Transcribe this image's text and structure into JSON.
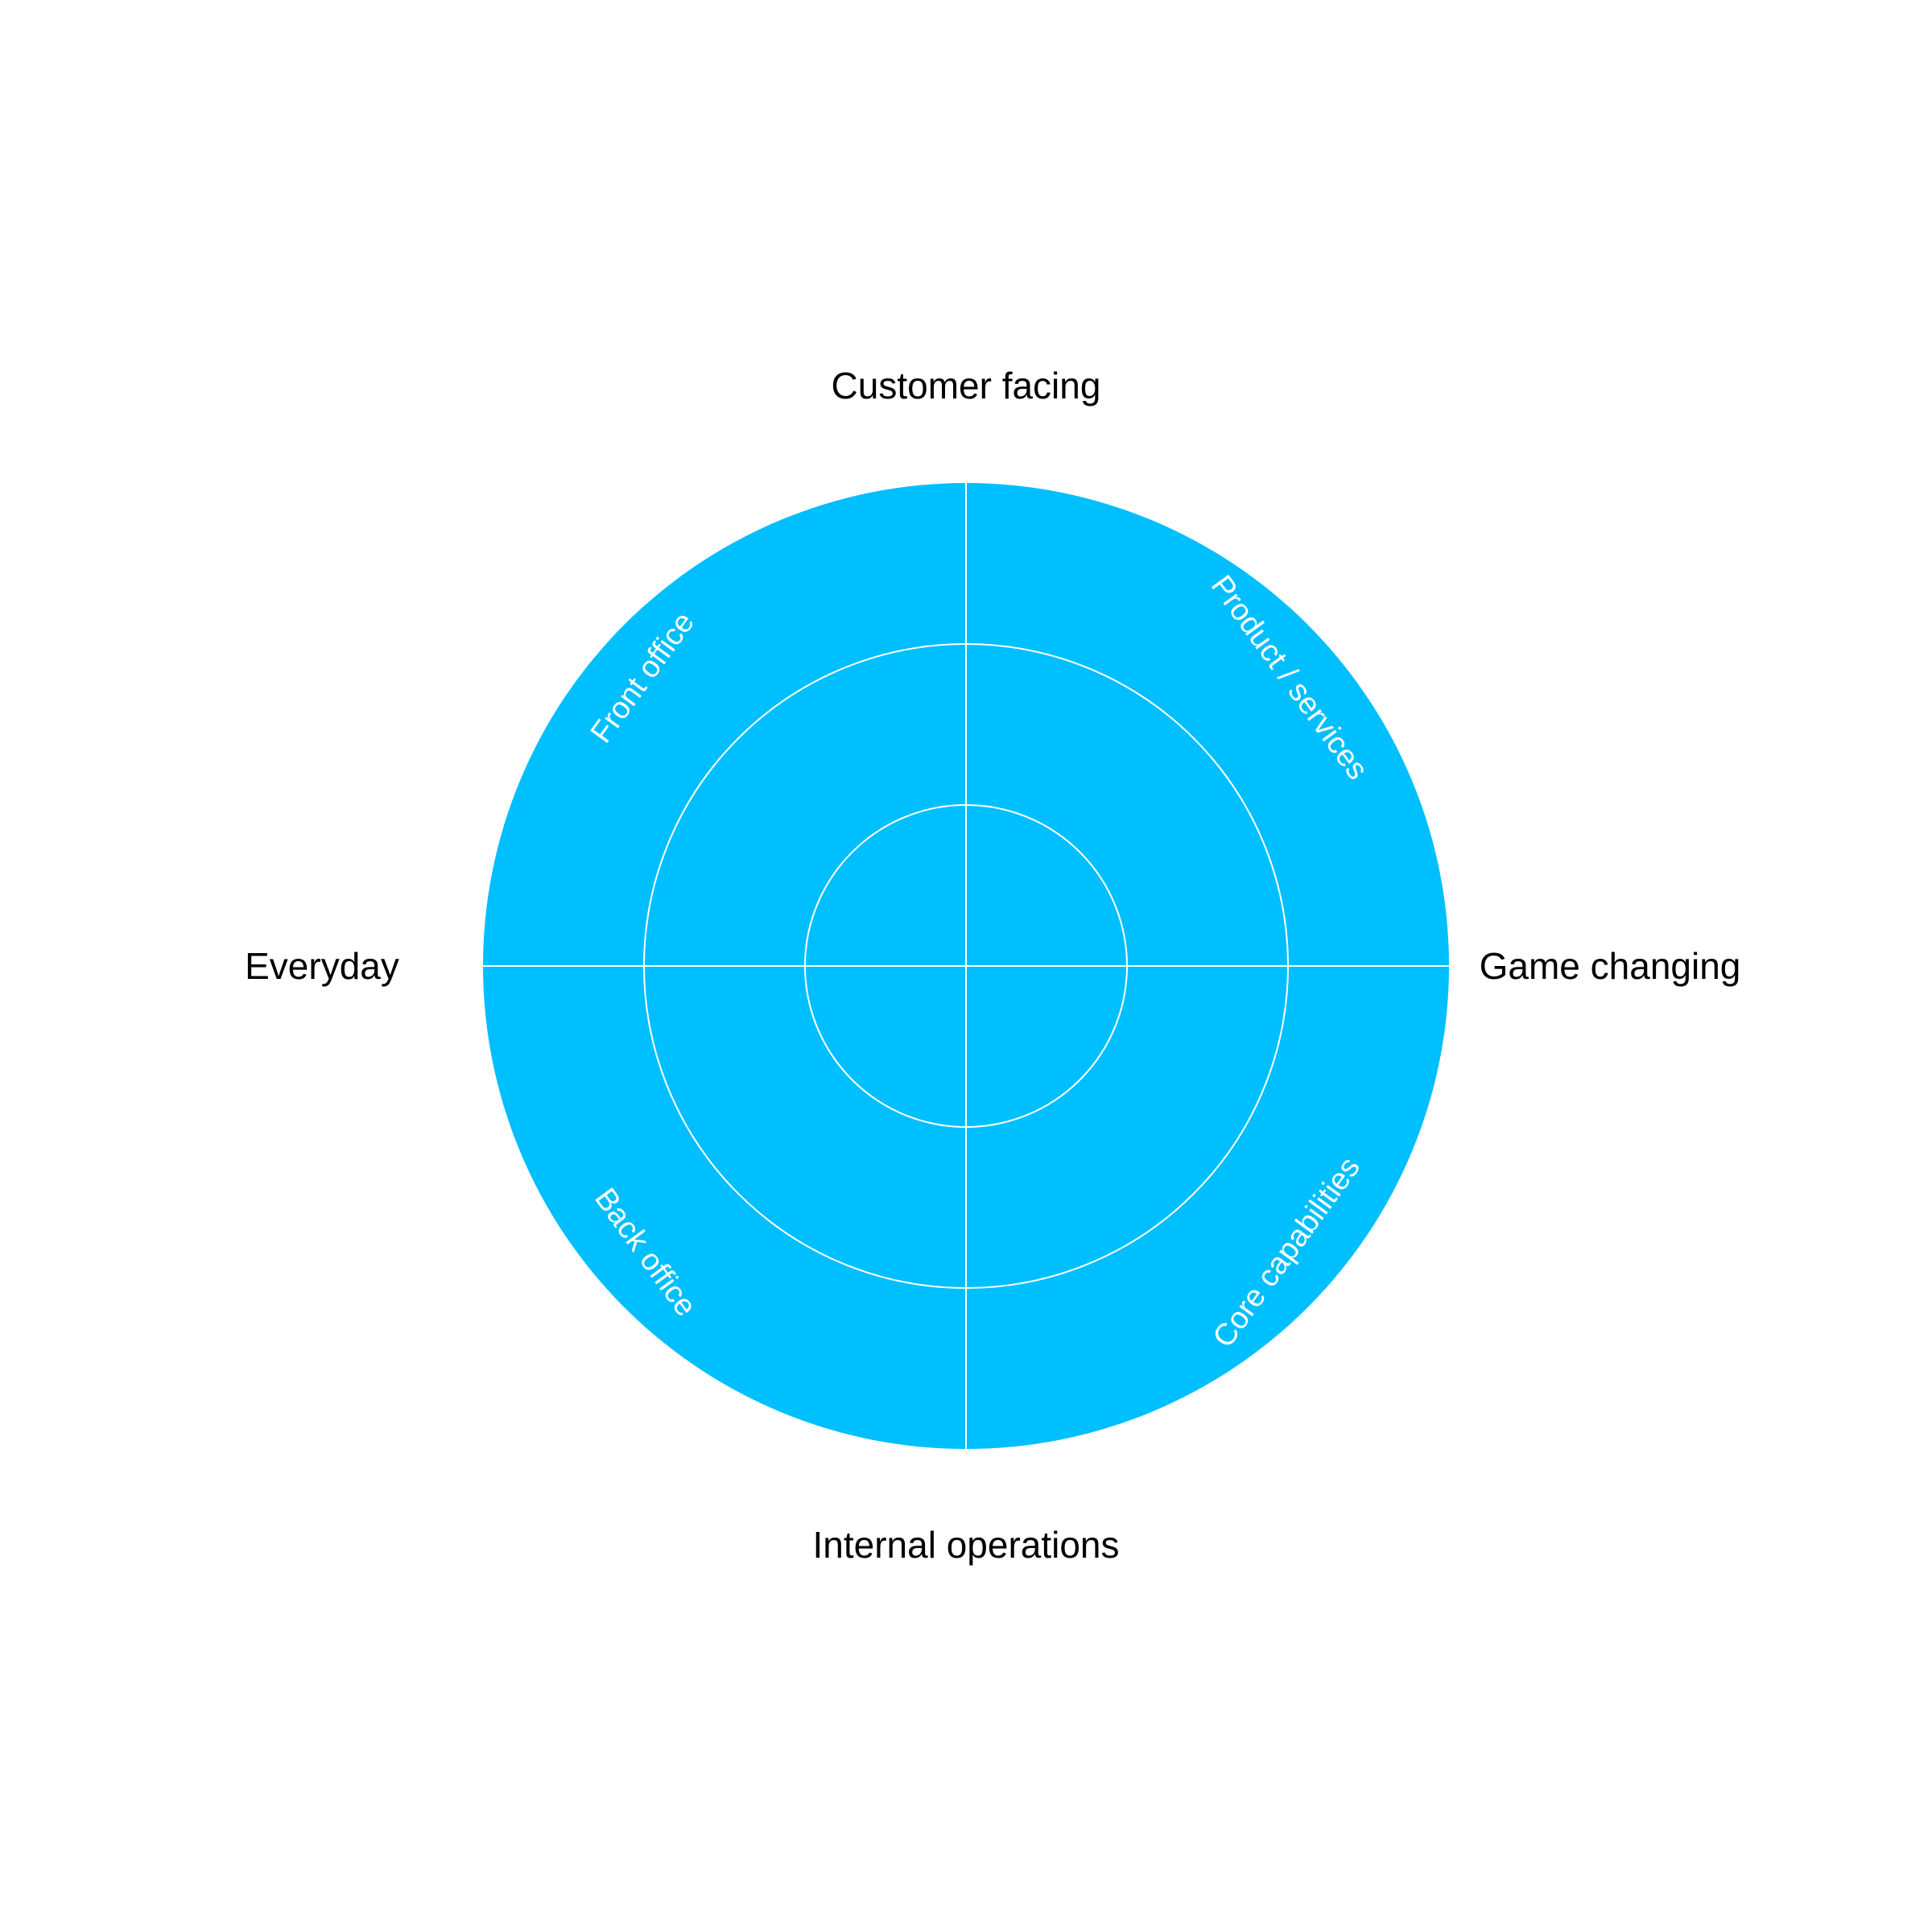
{
  "diagram": {
    "axis_labels": {
      "top": "Customer facing",
      "bottom": "Internal operations",
      "left": "Everyday",
      "right": "Game changing"
    },
    "quadrant_labels": {
      "top_left": "Front office",
      "top_right": "Product / services",
      "bottom_left": "Back office",
      "bottom_right": "Core capabilities"
    },
    "colors": {
      "fill": "#00BFFF",
      "lines": "#ffffff",
      "axis_text": "#000000",
      "quadrant_text": "#ffffff"
    }
  }
}
